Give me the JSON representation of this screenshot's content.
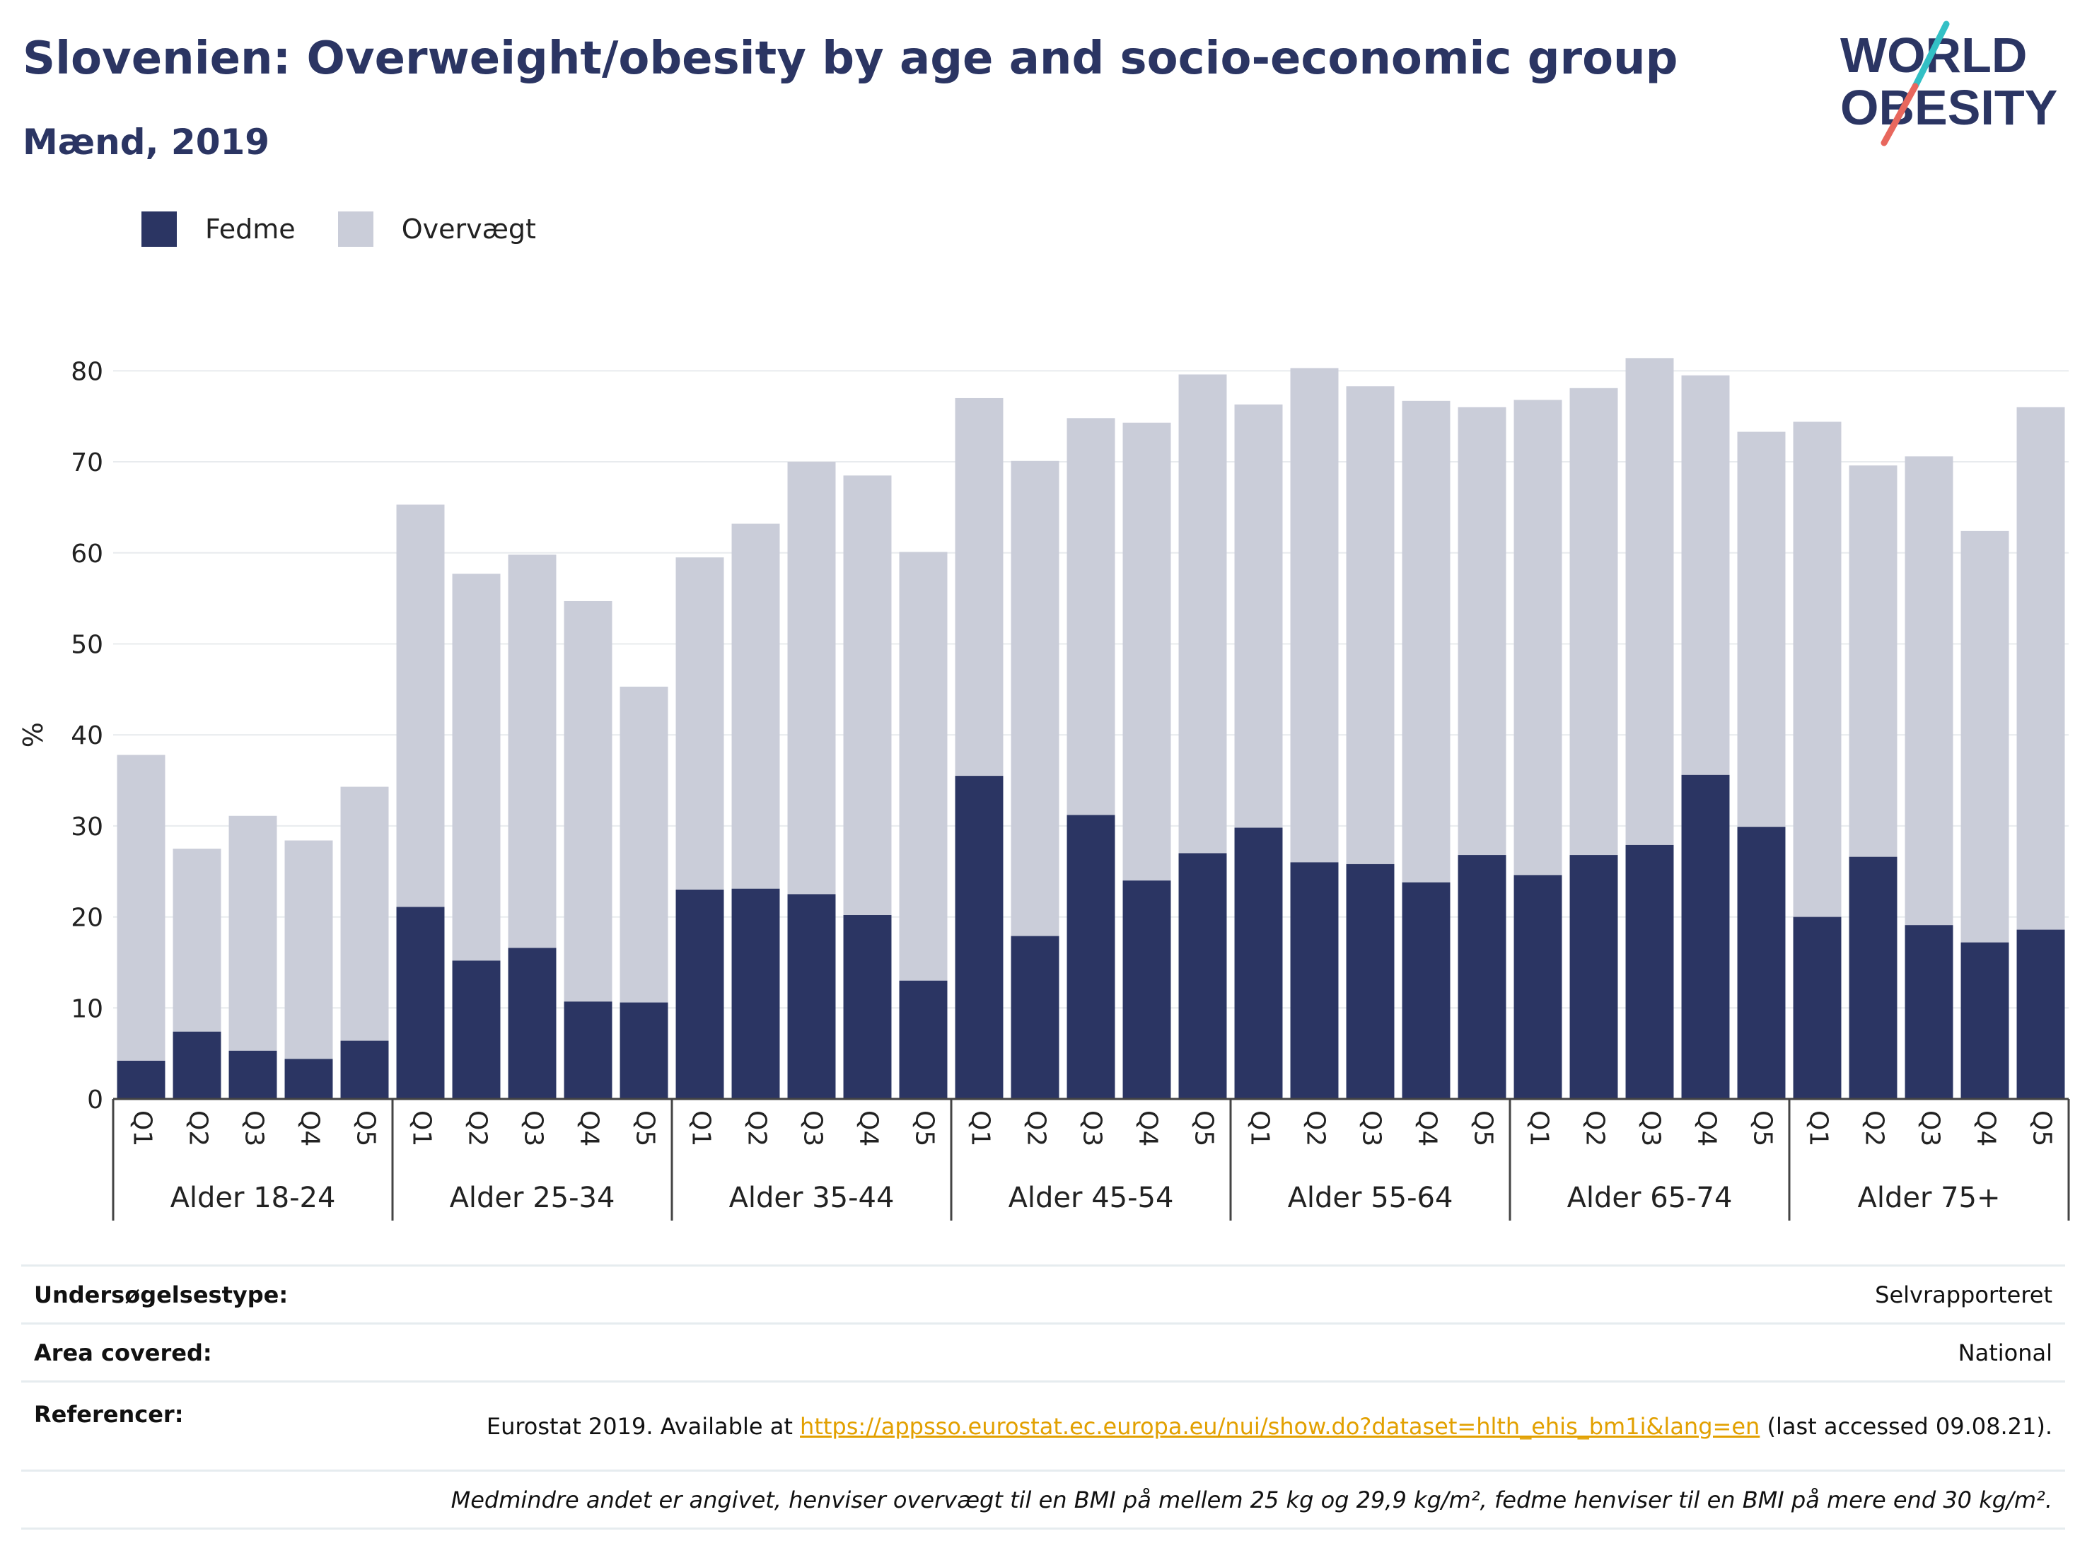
{
  "title": "Slovenien: Overweight/obesity by age and socio-economic group",
  "subtitle": "Mænd, 2019",
  "logo": {
    "line1": "WORLD",
    "line2": "OBESITY"
  },
  "colors": {
    "fedme": "#2b3563",
    "overvaegt": "#cacdd9",
    "text": "#2b3563",
    "link": "#e2a000",
    "logo_teal": "#33c0c5",
    "logo_red": "#e8675d"
  },
  "legend": [
    {
      "label": "Fedme",
      "color": "#2b3563"
    },
    {
      "label": "Overvægt",
      "color": "#cacdd9"
    }
  ],
  "chart_data": {
    "type": "bar",
    "stacked": true,
    "ylabel": "%",
    "ylim": [
      0,
      85
    ],
    "yticks": [
      0,
      10,
      20,
      30,
      40,
      50,
      60,
      70,
      80
    ],
    "grid": true,
    "legend_position": "top-left",
    "groups": [
      "Alder 18-24",
      "Alder 25-34",
      "Alder 35-44",
      "Alder 45-54",
      "Alder 55-64",
      "Alder 65-74",
      "Alder 75+"
    ],
    "categories": [
      "Q1",
      "Q2",
      "Q3",
      "Q4",
      "Q5"
    ],
    "series": [
      {
        "name": "Fedme",
        "values": [
          [
            4.2,
            7.4,
            5.3,
            4.4,
            6.4
          ],
          [
            21.1,
            15.2,
            16.6,
            10.7,
            10.6
          ],
          [
            23.0,
            23.1,
            22.5,
            20.2,
            13.0
          ],
          [
            35.5,
            17.9,
            31.2,
            24.0,
            27.0
          ],
          [
            29.8,
            26.0,
            25.8,
            23.8,
            26.8
          ],
          [
            24.6,
            26.8,
            27.9,
            35.6,
            29.9
          ],
          [
            20.0,
            26.6,
            19.1,
            17.2,
            18.6
          ]
        ]
      },
      {
        "name": "Overvægt",
        "values": [
          [
            33.6,
            20.1,
            25.8,
            24.0,
            27.9
          ],
          [
            44.2,
            42.5,
            43.2,
            44.0,
            34.7
          ],
          [
            36.5,
            40.1,
            47.5,
            48.3,
            47.1
          ],
          [
            41.5,
            52.2,
            43.6,
            50.3,
            52.6
          ],
          [
            46.5,
            54.3,
            52.5,
            52.9,
            49.2
          ],
          [
            52.2,
            51.3,
            53.5,
            43.9,
            43.4
          ],
          [
            54.4,
            43.0,
            51.5,
            45.2,
            57.4
          ]
        ]
      }
    ]
  },
  "info": {
    "survey_label": "Undersøgelsestype:",
    "survey_value": "Selvrapporteret",
    "area_label": "Area covered:",
    "area_value": "National",
    "ref_label": "Referencer:",
    "ref_text": "Eurostat 2019. Available at ",
    "ref_link": "https://appsso.eurostat.ec.europa.eu/nui/show.do?dataset=hlth_ehis_bm1i&lang=en",
    "ref_suffix": " (last accessed 09.08.21).",
    "note": "Medmindre andet er angivet, henviser overvægt til en BMI på mellem 25 kg og 29,9 kg/m², fedme henviser til en BMI på mere end 30 kg/m²."
  }
}
